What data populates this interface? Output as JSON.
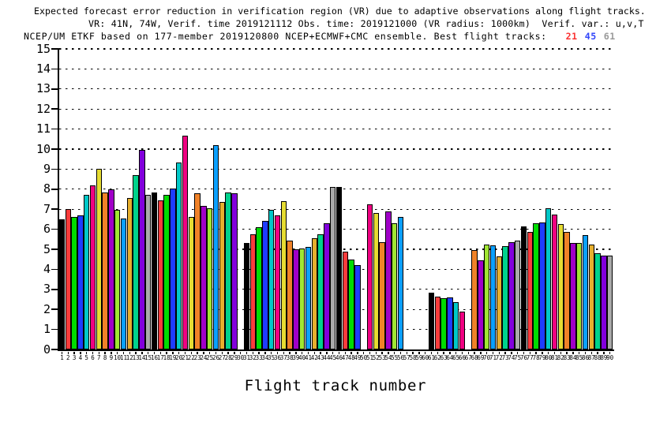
{
  "chart_data": {
    "type": "bar",
    "title": "Expected forecast error reduction in verification region (VR) due to adaptive observations along flight tracks.",
    "subtitle1": "VR: 41N, 74W, Verif. time 2019121112 Obs. time: 2019121000 (VR radius: 1000km)  Verif. var.: u,v,T",
    "subtitle2_prefix": "NCEP/UM ETKF based on 177-member 2019120800 NCEP+ECMWF+CMC ensemble. Best flight tracks:",
    "best_flight_tracks": [
      {
        "track": 21,
        "color": "#fa3232"
      },
      {
        "track": 45,
        "color": "#3246fa"
      },
      {
        "track": 61,
        "color": "#999999"
      }
    ],
    "xlabel": "Flight track number",
    "x_range": [
      1,
      90
    ],
    "ylim": [
      0,
      15
    ],
    "ytick_step": 1,
    "grid": "dotted-horizontal-every-integer",
    "bar_outline_color": "#000000",
    "palette_cycle_15": [
      "#000000",
      "#fa3c3c",
      "#00dc00",
      "#1e3cff",
      "#00c8c8",
      "#f00082",
      "#e6dc32",
      "#f08228",
      "#a000c8",
      "#a0e632",
      "#0aa0ff",
      "#e6af2d",
      "#00d28c",
      "#8200dc",
      "#aaaaaa"
    ],
    "color_rule": "bar fill = palette_cycle_15[(track - 1) % 15]",
    "values_by_track": [
      6.5,
      7.0,
      6.6,
      6.7,
      7.7,
      8.2,
      9.0,
      7.85,
      8.0,
      6.95,
      6.55,
      7.55,
      8.7,
      9.95,
      7.7,
      7.85,
      7.45,
      7.7,
      8.05,
      9.35,
      10.65,
      6.6,
      7.8,
      7.15,
      7.05,
      10.2,
      7.35,
      7.85,
      7.8,
      null,
      5.3,
      5.75,
      6.1,
      6.4,
      6.95,
      6.7,
      7.4,
      5.45,
      5.0,
      5.05,
      5.1,
      5.55,
      5.75,
      6.3,
      8.1,
      8.1,
      4.9,
      4.5,
      4.2,
      null,
      7.25,
      6.8,
      5.35,
      6.9,
      6.3,
      6.6,
      null,
      null,
      null,
      null,
      2.85,
      2.65,
      2.55,
      2.6,
      2.35,
      1.9,
      null,
      4.95,
      4.45,
      5.25,
      5.2,
      4.65,
      5.15,
      5.35,
      5.45,
      6.15,
      5.85,
      6.3,
      6.35,
      7.05,
      6.75,
      6.25,
      5.85,
      5.3,
      5.3,
      5.7,
      5.25,
      4.8,
      4.7,
      4.7
    ],
    "missing_tracks": [
      30,
      50,
      57,
      58,
      59,
      60,
      67
    ]
  }
}
